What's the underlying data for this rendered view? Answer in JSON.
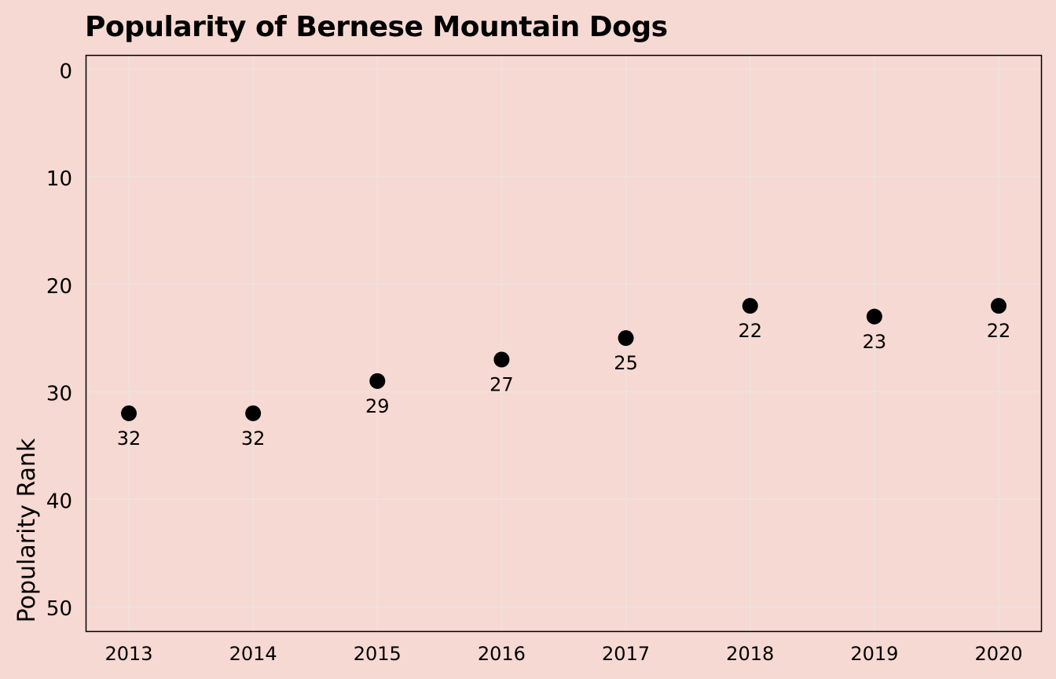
{
  "chart_data": {
    "type": "scatter",
    "title": "Popularity of Bernese Mountain Dogs",
    "xlabel": "",
    "ylabel": "Popularity Rank",
    "x": [
      "2013",
      "2014",
      "2015",
      "2016",
      "2017",
      "2018",
      "2019",
      "2020"
    ],
    "values": [
      32,
      32,
      29,
      27,
      25,
      22,
      23,
      22
    ],
    "point_labels": [
      "32",
      "32",
      "29",
      "27",
      "25",
      "22",
      "23",
      "22"
    ],
    "ylim": [
      52.3,
      -1.3
    ],
    "y_inverted": true,
    "yticks": [
      0,
      10,
      20,
      30,
      40,
      50
    ],
    "ytick_labels": [
      "0",
      "10",
      "20",
      "30",
      "40",
      "50"
    ],
    "grid": true,
    "legend": "none",
    "colors": {
      "background": "#f6d9d2",
      "marker": "#000000",
      "grid": "#ede3df",
      "frame": "#000000"
    }
  }
}
